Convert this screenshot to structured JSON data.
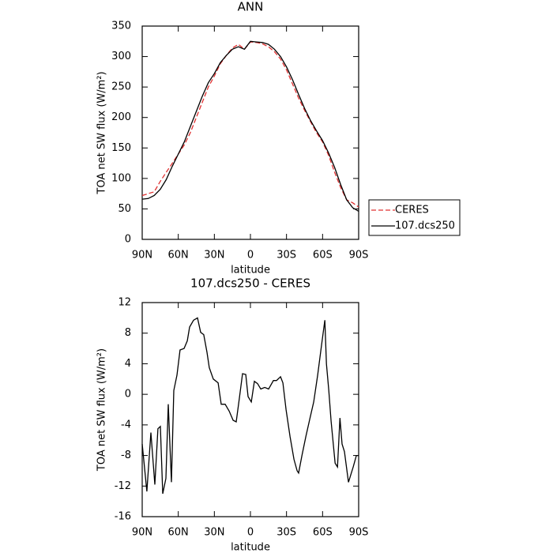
{
  "chart_data": [
    {
      "type": "line",
      "title": "ANN",
      "xlabel": "latitude",
      "ylabel": "TOA net SW flux (W/m²)",
      "xlim": [
        90,
        -90
      ],
      "ylim": [
        0,
        350
      ],
      "xticks": [
        {
          "value": 90,
          "label": "90N"
        },
        {
          "value": 60,
          "label": "60N"
        },
        {
          "value": 30,
          "label": "30N"
        },
        0,
        {
          "value": -30,
          "label": "30S"
        },
        {
          "value": -60,
          "label": "60S"
        },
        {
          "value": -90,
          "label": "90S"
        }
      ],
      "yticks": [
        0,
        50,
        100,
        150,
        200,
        250,
        300,
        350
      ],
      "legend": "outside-right",
      "x": [
        90,
        85,
        80,
        75,
        70,
        65,
        60,
        55,
        50,
        45,
        40,
        35,
        30,
        25,
        20,
        15,
        10,
        5,
        0,
        -5,
        -10,
        -15,
        -20,
        -25,
        -30,
        -35,
        -40,
        -45,
        -50,
        -55,
        -60,
        -65,
        -70,
        -75,
        -80,
        -85,
        -90
      ],
      "series": [
        {
          "name": "CERES",
          "color": "#e03030",
          "linestyle": "dashed",
          "values": [
            72,
            75,
            78,
            95,
            110,
            125,
            140,
            155,
            175,
            200,
            225,
            250,
            268,
            288,
            302,
            314,
            320,
            312,
            324,
            323,
            321,
            316,
            308,
            296,
            278,
            255,
            232,
            212,
            193,
            175,
            160,
            138,
            110,
            85,
            65,
            60,
            53
          ]
        },
        {
          "name": "107.dcs250",
          "color": "#000000",
          "linestyle": "solid",
          "values": [
            66,
            67,
            72,
            82,
            98,
            120,
            140,
            160,
            185,
            210,
            235,
            257,
            272,
            290,
            302,
            312,
            316,
            312,
            325,
            324,
            323,
            320,
            312,
            300,
            283,
            262,
            238,
            215,
            195,
            178,
            162,
            142,
            118,
            90,
            65,
            52,
            46
          ]
        }
      ]
    },
    {
      "type": "line",
      "title": "107.dcs250 - CERES",
      "xlabel": "latitude",
      "ylabel": "TOA net SW flux (W/m²)",
      "xlim": [
        90,
        -90
      ],
      "ylim": [
        -16,
        12
      ],
      "xticks": [
        {
          "value": 90,
          "label": "90N"
        },
        {
          "value": 60,
          "label": "60N"
        },
        {
          "value": 30,
          "label": "30N"
        },
        0,
        {
          "value": -30,
          "label": "30S"
        },
        {
          "value": -60,
          "label": "60S"
        },
        {
          "value": -90,
          "label": "90S"
        }
      ],
      "yticks": [
        -16,
        -12,
        -8,
        -4,
        0,
        4,
        8,
        12
      ],
      "color": "#000000",
      "x": [
        90,
        86.1,
        82.8,
        79.5,
        76.9,
        74.9,
        72.9,
        70.3,
        68.3,
        65.7,
        63.7,
        61.1,
        58.5,
        55.2,
        52.5,
        50.6,
        47.3,
        44.0,
        41.4,
        38.8,
        36.1,
        34.2,
        30.9,
        26.9,
        24.3,
        21.0,
        17.7,
        14.4,
        11.8,
        9.2,
        6.6,
        3.9,
        2.0,
        -0.7,
        -3.3,
        -5.9,
        -8.6,
        -11.9,
        -15.1,
        -19.1,
        -21.7,
        -25.0,
        -27.0,
        -29.6,
        -32.9,
        -36.2,
        -38.8,
        -40.1,
        -42.8,
        -46.1,
        -49.4,
        -52.6,
        -55.9,
        -59.2,
        -61.9,
        -63.2,
        -65.2,
        -67.1,
        -70.4,
        -72.4,
        -74.4,
        -76.2,
        -78.2,
        -81.5,
        -85.5,
        -88.1,
        -90
      ],
      "values": [
        -6.5,
        -12.7,
        -5,
        -11.8,
        -4.5,
        -4.2,
        -13,
        -11,
        -1.3,
        -11.5,
        0.5,
        2.5,
        5.8,
        6,
        7,
        8.8,
        9.7,
        10,
        8.1,
        7.8,
        5.5,
        3.5,
        2,
        1.5,
        -1.3,
        -1.3,
        -2.2,
        -3.4,
        -3.6,
        -0.5,
        2.7,
        2.6,
        -0.3,
        -1,
        1.7,
        1.4,
        0.7,
        0.9,
        0.7,
        1.8,
        1.8,
        2.3,
        1.5,
        -2,
        -5.5,
        -8.5,
        -10,
        -10.3,
        -8,
        -5.5,
        -3.2,
        -1,
        2.5,
        6.5,
        9.7,
        4,
        0.5,
        -3.5,
        -9,
        -9.5,
        -3.1,
        -6.5,
        -7.5,
        -11.5,
        -9.5,
        -8,
        -8
      ]
    }
  ]
}
